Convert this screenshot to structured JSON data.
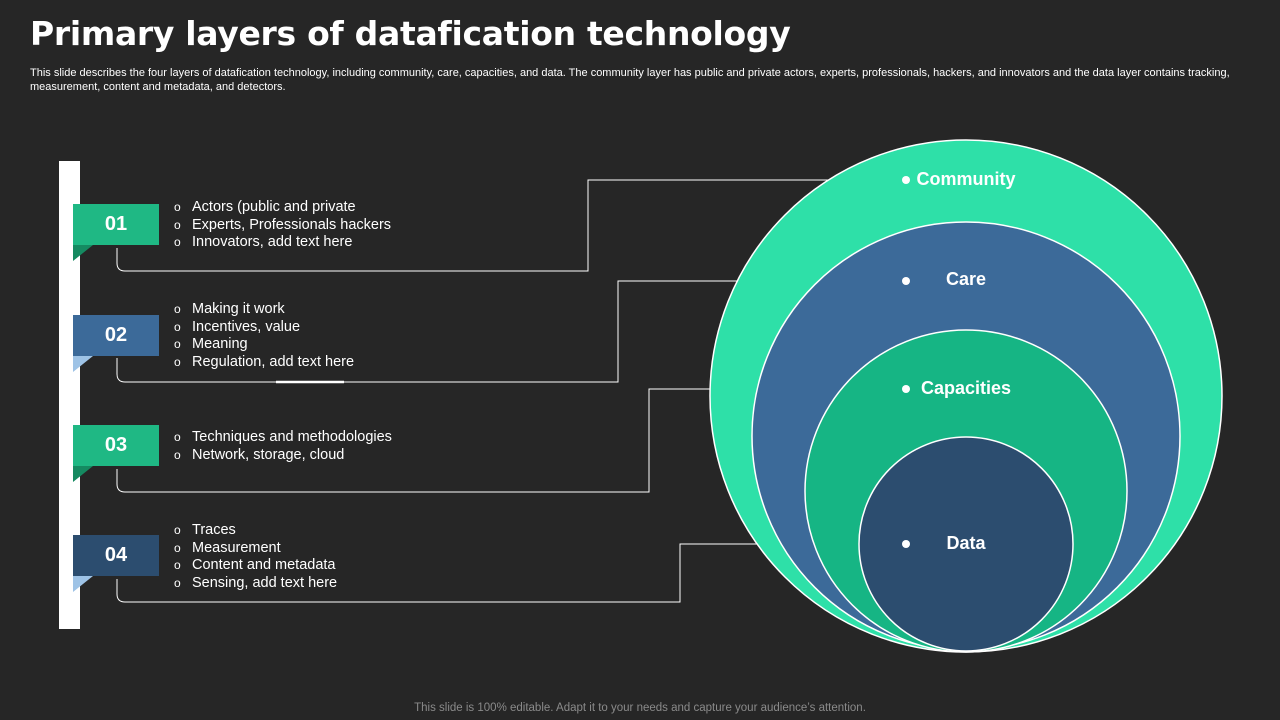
{
  "title": "Primary layers of datafication technology",
  "subtitle": "This slide describes the four layers of datafication technology, including community, care, capacities, and data. The community layer has public and private actors, experts, professionals, hackers, and innovators and the data layer contains tracking, measurement, content and metadata, and detectors.",
  "footer": "This slide is 100% editable. Adapt it to your needs and capture your audience’s attention.",
  "bullet_symbol": "o",
  "layers": [
    {
      "number": "01",
      "label": "Community",
      "items": [
        "Actors (public and private",
        "Experts, Professionals hackers",
        "Innovators, add text here"
      ]
    },
    {
      "number": "02",
      "label": "Care",
      "items": [
        "Making it work",
        "Incentives, value",
        "Meaning",
        "Regulation, add text here"
      ]
    },
    {
      "number": "03",
      "label": "Capacities",
      "items": [
        "Techniques and methodologies",
        "Network, storage, cloud"
      ]
    },
    {
      "number": "04",
      "label": "Data",
      "items": [
        "Traces",
        "Measurement",
        "Content and metadata",
        "Sensing, add text here"
      ]
    }
  ],
  "colors": {
    "background": "#262626",
    "community": "#2ee0a8",
    "care": "#3c6a99",
    "capacities": "#16b584",
    "data": "#2c4d6f"
  }
}
